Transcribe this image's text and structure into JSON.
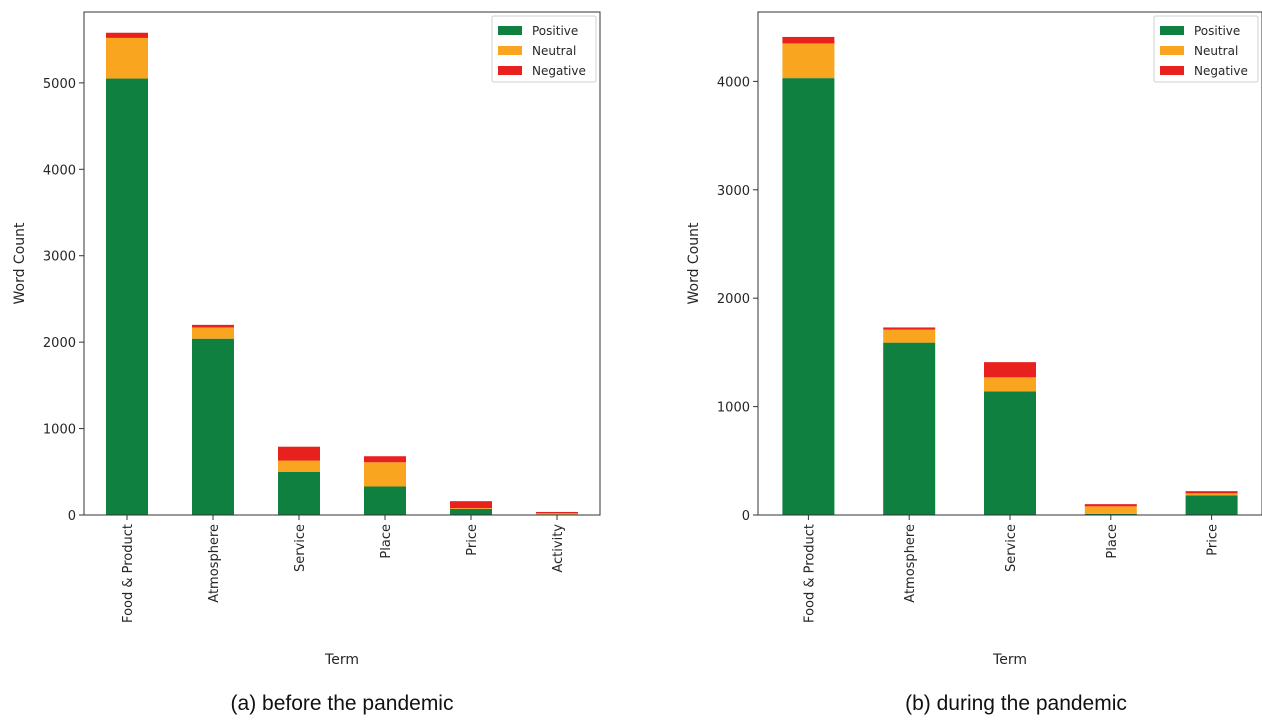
{
  "chart_data": [
    {
      "type": "bar",
      "stacked": true,
      "caption": "(a) before the pandemic",
      "xlabel": "Term",
      "ylabel": "Word Count",
      "ylim": [
        0,
        5820
      ],
      "yticks": [
        0,
        1000,
        2000,
        3000,
        4000,
        5000
      ],
      "categories": [
        "Food & Product",
        "Atmosphere",
        "Service",
        "Place",
        "Price",
        "Activity"
      ],
      "series": [
        {
          "name": "Positive",
          "color": "#0f8040",
          "values": [
            5050,
            2040,
            500,
            330,
            70,
            8
          ]
        },
        {
          "name": "Neutral",
          "color": "#f9a51f",
          "values": [
            470,
            130,
            130,
            280,
            10,
            12
          ]
        },
        {
          "name": "Negative",
          "color": "#e8211e",
          "values": [
            60,
            30,
            160,
            70,
            80,
            15
          ]
        }
      ],
      "legend": "top-right",
      "grid": false
    },
    {
      "type": "bar",
      "stacked": true,
      "caption": "(b) during the pandemic",
      "xlabel": "Term",
      "ylabel": "Word Count",
      "ylim": [
        0,
        4640
      ],
      "yticks": [
        0,
        1000,
        2000,
        3000,
        4000
      ],
      "categories": [
        "Food & Product",
        "Atmosphere",
        "Service",
        "Place",
        "Price"
      ],
      "series": [
        {
          "name": "Positive",
          "color": "#0f8040",
          "values": [
            4030,
            1590,
            1140,
            10,
            180
          ]
        },
        {
          "name": "Neutral",
          "color": "#f9a51f",
          "values": [
            320,
            120,
            130,
            70,
            20
          ]
        },
        {
          "name": "Negative",
          "color": "#e8211e",
          "values": [
            60,
            20,
            140,
            20,
            20
          ]
        }
      ],
      "legend": "top-right",
      "grid": false
    }
  ]
}
